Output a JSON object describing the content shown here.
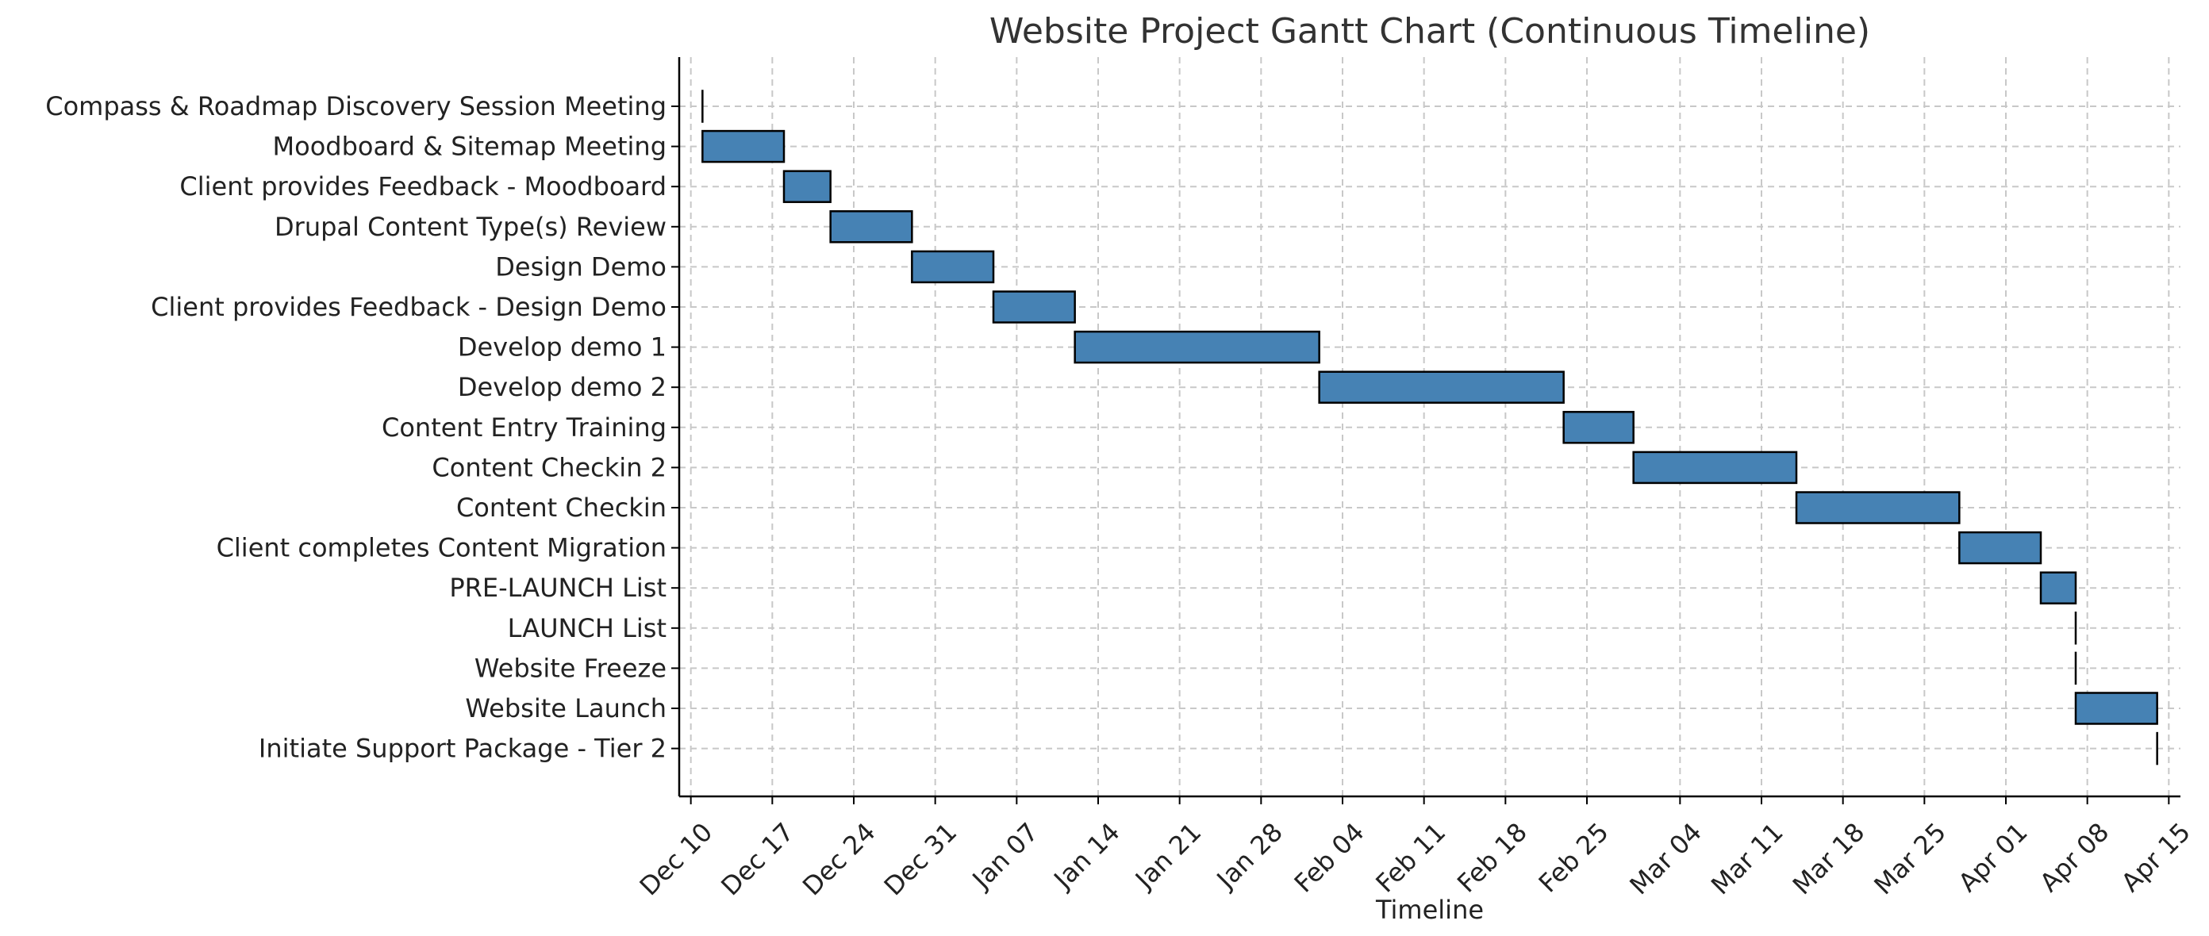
{
  "chart_data": {
    "type": "gantt",
    "title": "Website Project Gantt Chart (Continuous Timeline)",
    "xlabel": "Timeline",
    "ylabel": "",
    "bar_color": "#4682b4",
    "grid": true,
    "x_range": [
      "2023-12-09",
      "2024-04-16"
    ],
    "x_ticks": [
      {
        "date": "2023-12-10",
        "label": "Dec 10"
      },
      {
        "date": "2023-12-17",
        "label": "Dec 17"
      },
      {
        "date": "2023-12-24",
        "label": "Dec 24"
      },
      {
        "date": "2023-12-31",
        "label": "Dec 31"
      },
      {
        "date": "2024-01-07",
        "label": "Jan 07"
      },
      {
        "date": "2024-01-14",
        "label": "Jan 14"
      },
      {
        "date": "2024-01-21",
        "label": "Jan 21"
      },
      {
        "date": "2024-01-28",
        "label": "Jan 28"
      },
      {
        "date": "2024-02-04",
        "label": "Feb 04"
      },
      {
        "date": "2024-02-11",
        "label": "Feb 11"
      },
      {
        "date": "2024-02-18",
        "label": "Feb 18"
      },
      {
        "date": "2024-02-25",
        "label": "Feb 25"
      },
      {
        "date": "2024-03-04",
        "label": "Mar 04"
      },
      {
        "date": "2024-03-11",
        "label": "Mar 11"
      },
      {
        "date": "2024-03-18",
        "label": "Mar 18"
      },
      {
        "date": "2024-03-25",
        "label": "Mar 25"
      },
      {
        "date": "2024-04-01",
        "label": "Apr 01"
      },
      {
        "date": "2024-04-08",
        "label": "Apr 08"
      },
      {
        "date": "2024-04-15",
        "label": "Apr 15"
      }
    ],
    "tasks": [
      {
        "name": "Compass & Roadmap Discovery Session Meeting",
        "start": "2023-12-11",
        "end": "2023-12-11"
      },
      {
        "name": "Moodboard & Sitemap Meeting",
        "start": "2023-12-11",
        "end": "2023-12-18"
      },
      {
        "name": "Client provides Feedback - Moodboard",
        "start": "2023-12-18",
        "end": "2023-12-22"
      },
      {
        "name": "Drupal Content Type(s) Review",
        "start": "2023-12-22",
        "end": "2023-12-29"
      },
      {
        "name": "Design Demo",
        "start": "2023-12-29",
        "end": "2024-01-05"
      },
      {
        "name": "Client provides Feedback - Design Demo",
        "start": "2024-01-05",
        "end": "2024-01-12"
      },
      {
        "name": "Develop demo 1",
        "start": "2024-01-12",
        "end": "2024-02-02"
      },
      {
        "name": "Develop demo 2",
        "start": "2024-02-02",
        "end": "2024-02-23"
      },
      {
        "name": "Content Entry Training",
        "start": "2024-02-23",
        "end": "2024-02-29"
      },
      {
        "name": "Content Checkin 2",
        "start": "2024-02-29",
        "end": "2024-03-14"
      },
      {
        "name": "Content Checkin",
        "start": "2024-03-14",
        "end": "2024-03-28"
      },
      {
        "name": "Client completes Content Migration",
        "start": "2024-03-28",
        "end": "2024-04-04"
      },
      {
        "name": "PRE-LAUNCH List",
        "start": "2024-04-04",
        "end": "2024-04-07"
      },
      {
        "name": "LAUNCH List",
        "start": "2024-04-07",
        "end": "2024-04-07"
      },
      {
        "name": "Website Freeze",
        "start": "2024-04-07",
        "end": "2024-04-07"
      },
      {
        "name": "Website Launch",
        "start": "2024-04-07",
        "end": "2024-04-14"
      },
      {
        "name": "Initiate Support Package - Tier 2",
        "start": "2024-04-14",
        "end": "2024-04-14"
      }
    ]
  }
}
